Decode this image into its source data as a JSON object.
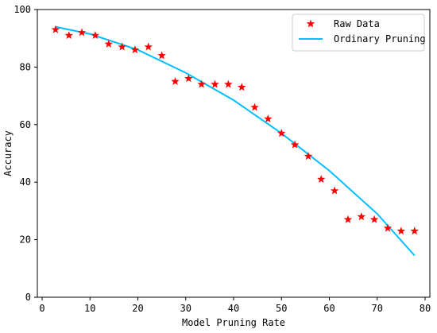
{
  "chart_data": {
    "type": "scatter",
    "title": "",
    "xlabel": "Model Pruning Rate",
    "ylabel": "Accuracy",
    "xlim": [
      -1,
      81
    ],
    "ylim": [
      0,
      100
    ],
    "xticks": [
      0,
      10,
      20,
      30,
      40,
      50,
      60,
      70,
      80
    ],
    "yticks": [
      0,
      20,
      40,
      60,
      80,
      100
    ],
    "grid": false,
    "legend_position": "top-right",
    "series": [
      {
        "name": "Raw Data",
        "kind": "scatter",
        "marker": "star",
        "color": "#ff0000",
        "x": [
          2.8,
          5.6,
          8.3,
          11.1,
          13.9,
          16.7,
          19.4,
          22.2,
          25.0,
          27.8,
          30.6,
          33.3,
          36.1,
          38.9,
          41.7,
          44.4,
          47.2,
          50.0,
          52.8,
          55.6,
          58.3,
          61.1,
          63.9,
          66.7,
          69.4,
          72.2,
          75.0,
          77.8
        ],
        "y": [
          93,
          91,
          92,
          91,
          88,
          87,
          86,
          87,
          84,
          75,
          76,
          74,
          74,
          74,
          73,
          66,
          62,
          57,
          53,
          49,
          41,
          37,
          27,
          28,
          27,
          24,
          23,
          23
        ]
      },
      {
        "name": "Ordinary Pruning",
        "kind": "line",
        "color": "#00bfff",
        "x": [
          2.8,
          10,
          20,
          30,
          40,
          50,
          60,
          70,
          77.8
        ],
        "y": [
          94,
          91.5,
          86,
          78,
          68.5,
          57,
          44,
          29,
          14.5
        ]
      }
    ]
  }
}
